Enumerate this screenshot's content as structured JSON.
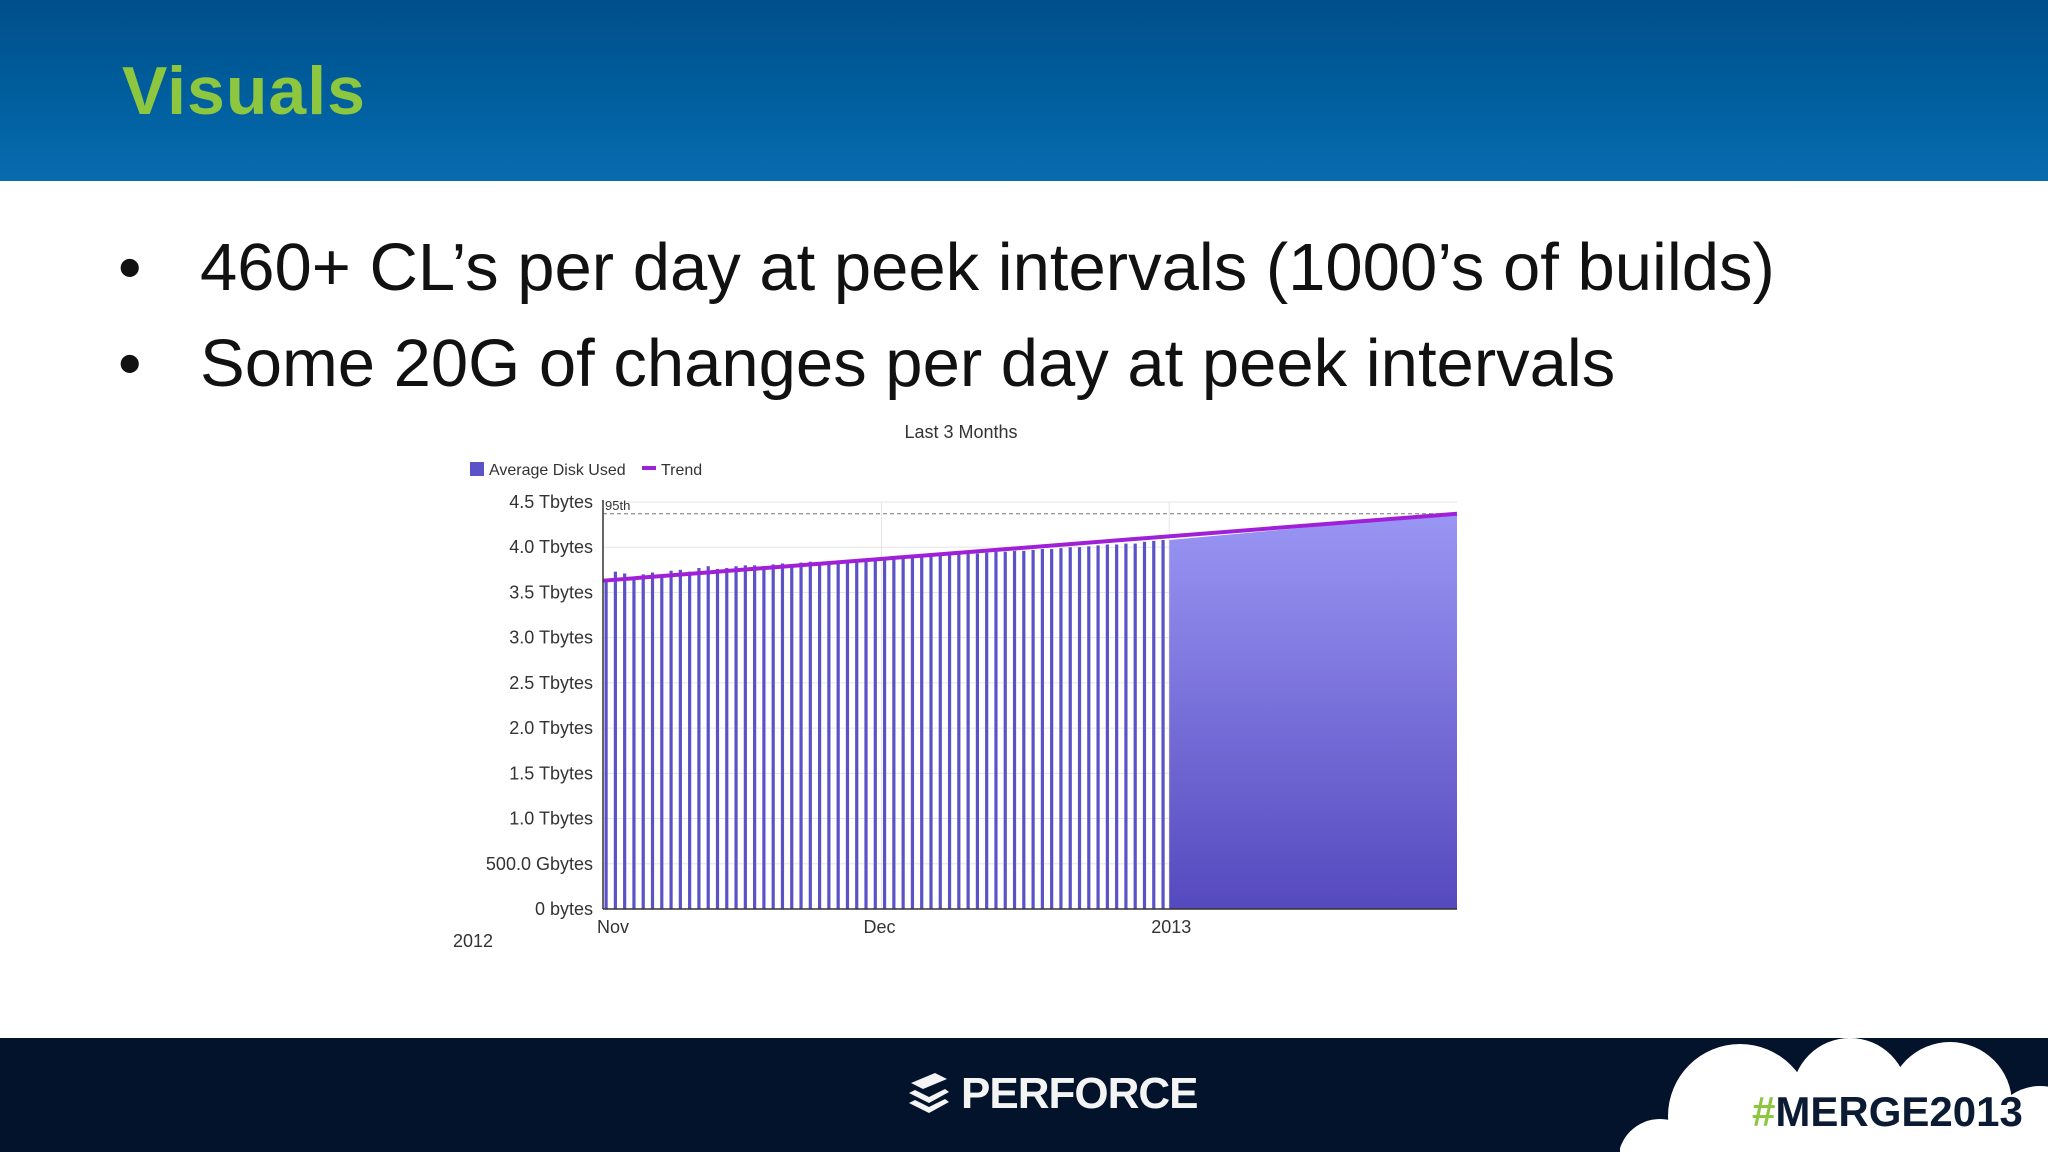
{
  "slide": {
    "title": "Visuals",
    "bullets": [
      "460+ CL’s per day at peek intervals (1000’s of builds)",
      "Some 20G of changes per day at peek intervals"
    ],
    "bullet_symbol": "•"
  },
  "footer": {
    "brand": "PERFORCE",
    "hashtag_symbol": "#",
    "hashtag_text": "MERGE2013",
    "brand_icon": "stacked-layers-icon"
  },
  "colors": {
    "header_blue": "#0060a0",
    "title_green": "#8dc63f",
    "footer_navy": "#02132b",
    "bar_color": "#5b52c8",
    "trend_color": "#a020d8"
  },
  "chart_data": {
    "type": "bar",
    "title": "Last 3 Months",
    "legend": [
      "Average Disk Used",
      "Trend"
    ],
    "legend_placement": "top-left",
    "yticks": [
      "0 bytes",
      "500.0 Gbytes",
      "1.0 Tbytes",
      "1.5 Tbytes",
      "2.0 Tbytes",
      "2.5 Tbytes",
      "3.0 Tbytes",
      "3.5 Tbytes",
      "4.0 Tbytes",
      "4.5 Tbytes"
    ],
    "xticks": [
      "Nov",
      "Dec",
      "2013"
    ],
    "xtick_positions": [
      0,
      30,
      61
    ],
    "year_label": "2012",
    "percentile_label": "95th",
    "percentile_value": 4.37,
    "ylim": [
      0,
      4.5
    ],
    "y_unit": "Tbytes",
    "grid": true,
    "series": [
      {
        "name": "Average Disk Used",
        "x_start": 0,
        "x_step": 1,
        "values": [
          3.64,
          3.73,
          3.71,
          3.66,
          3.7,
          3.72,
          3.69,
          3.74,
          3.75,
          3.73,
          3.77,
          3.79,
          3.76,
          3.77,
          3.79,
          3.8,
          3.8,
          3.79,
          3.81,
          3.82,
          3.81,
          3.83,
          3.84,
          3.83,
          3.84,
          3.85,
          3.86,
          3.85,
          3.87,
          3.88,
          3.88,
          3.87,
          3.89,
          3.9,
          3.9,
          3.9,
          3.91,
          3.92,
          3.92,
          3.93,
          3.93,
          3.94,
          3.95,
          3.95,
          3.96,
          3.96,
          3.97,
          3.98,
          3.98,
          3.99,
          4.0,
          4.0,
          4.01,
          4.02,
          4.03,
          4.03,
          4.04,
          4.04,
          4.06,
          4.07,
          4.08,
          4.08
        ]
      },
      {
        "name": "Average Disk Used",
        "type": "area",
        "x": [
          61,
          92
        ],
        "values": [
          4.08,
          4.37
        ]
      },
      {
        "name": "Trend",
        "type": "line",
        "x": [
          0,
          92
        ],
        "values": [
          3.63,
          4.37
        ]
      }
    ],
    "x_domain": [
      0,
      92
    ]
  }
}
